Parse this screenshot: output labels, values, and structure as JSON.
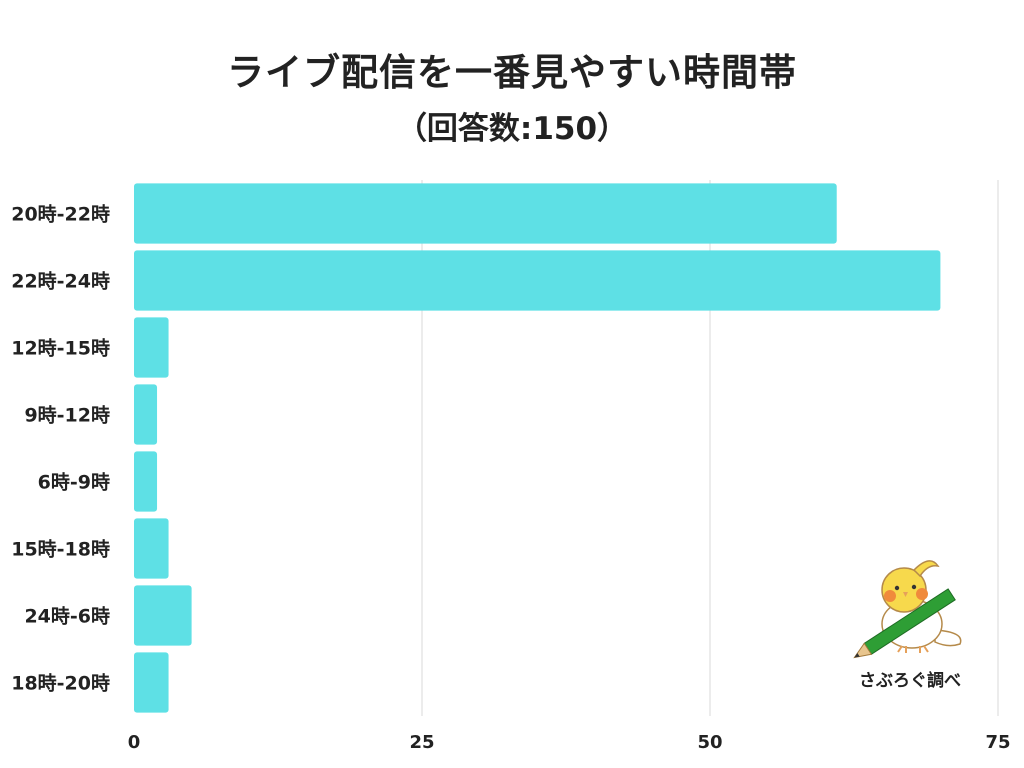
{
  "chart_data": {
    "type": "bar",
    "orientation": "horizontal",
    "title": "ライブ配信を一番見やすい時間帯",
    "subtitle": "（回答数:150）",
    "categories": [
      "20時-22時",
      "22時-24時",
      "12時-15時",
      "9時-12時",
      "6時-9時",
      "15時-18時",
      "24時-6時",
      "18時-20時"
    ],
    "values": [
      61,
      70,
      3,
      2,
      2,
      3,
      5,
      3
    ],
    "xlim": [
      0,
      75
    ],
    "xticks": [
      0,
      25,
      50,
      75
    ],
    "grid": "vertical",
    "bar_color": "#5EE0E5",
    "grid_color": "#D9D9D9"
  },
  "credit": "さぶろぐ調べ",
  "logo_icon": "cockatiel-with-pencil-icon"
}
